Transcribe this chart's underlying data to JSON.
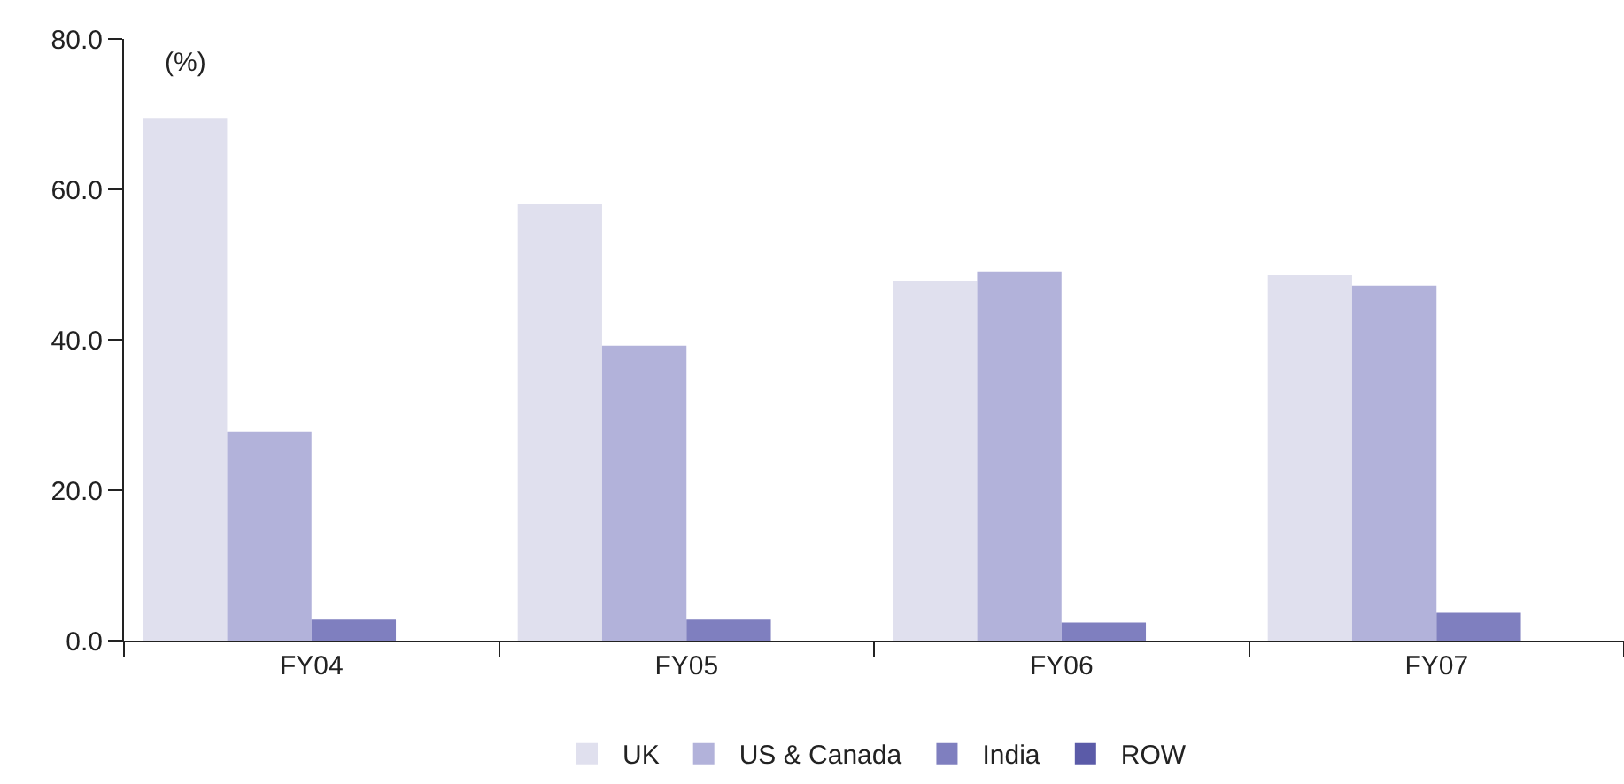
{
  "chart_data": {
    "type": "bar",
    "ylabel": "(%)",
    "categories": [
      "FY04",
      "FY05",
      "FY06",
      "FY07"
    ],
    "series": [
      {
        "name": "UK",
        "color": "#e0e0ee",
        "values": [
          69.5,
          58.1,
          47.8,
          48.6
        ]
      },
      {
        "name": "US & Canada",
        "color": "#b2b2da",
        "values": [
          27.8,
          39.2,
          49.1,
          47.2
        ]
      },
      {
        "name": "India",
        "color": "#7f7fbf",
        "values": [
          2.8,
          2.8,
          2.4,
          3.7
        ]
      },
      {
        "name": "ROW",
        "color": "#5b5ba8",
        "values": [
          0,
          0,
          0,
          0
        ]
      }
    ],
    "ylim": [
      0,
      80
    ],
    "yticks": [
      {
        "value": 0,
        "label": "0.0"
      },
      {
        "value": 20,
        "label": "20.0"
      },
      {
        "value": 40,
        "label": "40.0"
      },
      {
        "value": 60,
        "label": "60.0"
      },
      {
        "value": 80,
        "label": "80.0"
      }
    ],
    "grid": false,
    "legend": "bottom"
  }
}
